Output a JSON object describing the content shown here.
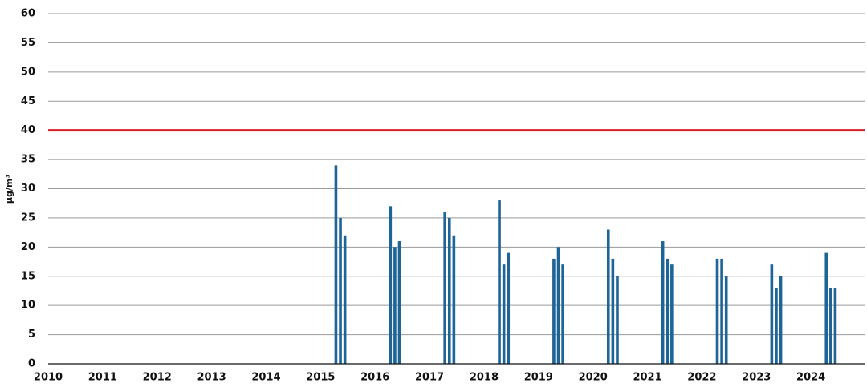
{
  "chart_data": {
    "type": "bar",
    "ylabel": "µg/m³",
    "categories": [
      "2010",
      "2011",
      "2012",
      "2013",
      "2014",
      "2015",
      "2016",
      "2017",
      "2018",
      "2019",
      "2020",
      "2021",
      "2022",
      "2023",
      "2024"
    ],
    "series": [
      {
        "color": "#1f6496",
        "values": [
          null,
          null,
          null,
          null,
          null,
          34,
          27,
          26,
          28,
          18,
          23,
          21,
          18,
          17,
          19
        ]
      },
      {
        "color": "#1f6496",
        "values": [
          null,
          null,
          null,
          null,
          null,
          25,
          20,
          25,
          17,
          20,
          18,
          18,
          18,
          13,
          13
        ]
      },
      {
        "color": "#1f6496",
        "values": [
          null,
          null,
          null,
          null,
          null,
          22,
          21,
          22,
          19,
          17,
          15,
          17,
          15,
          15,
          13
        ]
      }
    ],
    "reference_line": {
      "value": 40,
      "color": "#d62027"
    },
    "ylim": [
      0,
      60
    ],
    "yticks": [
      0,
      5,
      10,
      15,
      20,
      25,
      30,
      35,
      40,
      45,
      50,
      55,
      60
    ],
    "grid": true
  }
}
